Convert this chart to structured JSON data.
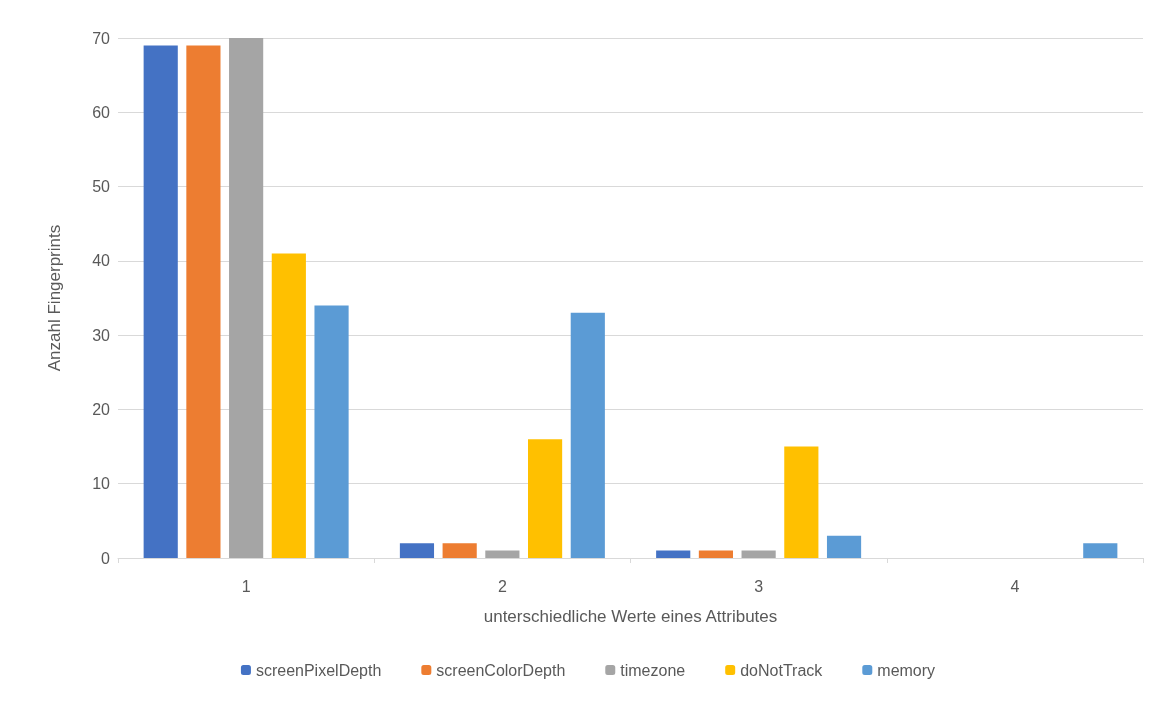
{
  "chart_data": {
    "type": "bar",
    "xlabel": "unterschiedliche Werte eines Attributes",
    "ylabel": "Anzahl Fingerprints",
    "categories": [
      "1",
      "2",
      "3",
      "4"
    ],
    "series": [
      {
        "name": "screenPixelDepth",
        "color": "#4472c4",
        "values": [
          69,
          2,
          1,
          0
        ]
      },
      {
        "name": "screenColorDepth",
        "color": "#ed7d31",
        "values": [
          69,
          2,
          1,
          0
        ]
      },
      {
        "name": "timezone",
        "color": "#a5a5a5",
        "values": [
          70,
          1,
          1,
          0
        ]
      },
      {
        "name": "doNotTrack",
        "color": "#ffc000",
        "values": [
          41,
          16,
          15,
          0
        ]
      },
      {
        "name": "memory",
        "color": "#5b9bd5",
        "values": [
          34,
          33,
          3,
          2
        ]
      }
    ],
    "ylim": [
      0,
      70
    ],
    "yticks": [
      0,
      10,
      20,
      30,
      40,
      50,
      60,
      70
    ],
    "grid": "y",
    "legend": "bottom"
  }
}
